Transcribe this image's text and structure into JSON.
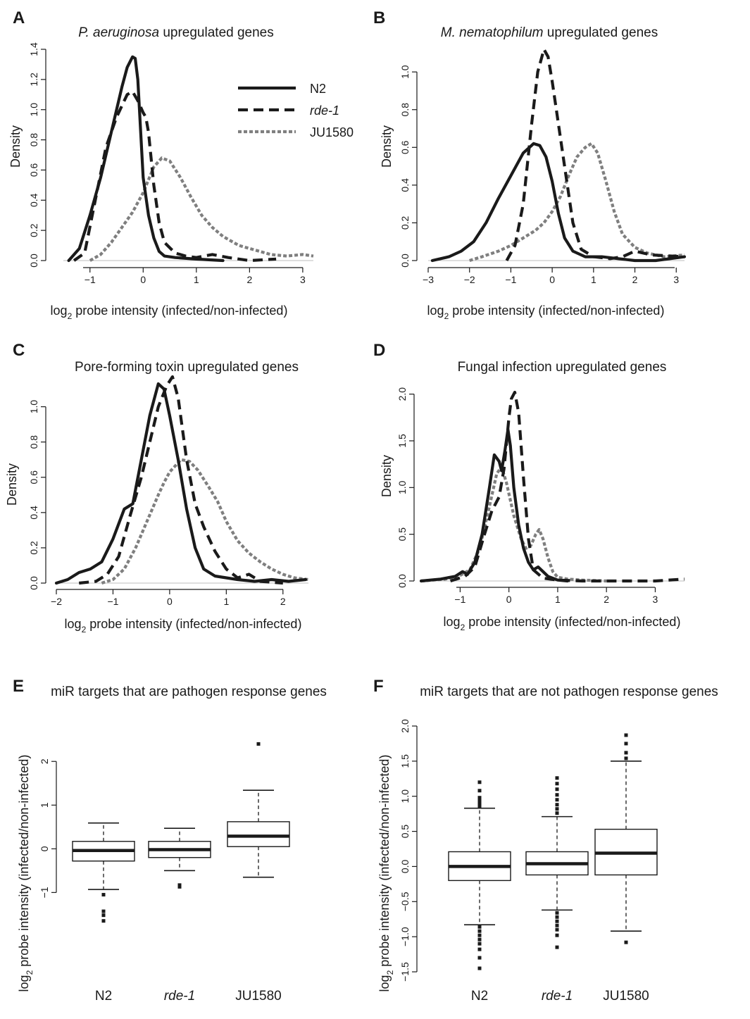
{
  "chart_data": [
    {
      "panel_label": "A",
      "type": "line",
      "title_italic": "P. aeruginosa",
      "title_rest": " upregulated genes",
      "xlabel": "log2 probe intensity (infected/non-infected)",
      "xlabel_main": "log",
      "xlabel_sub": "2",
      "xlabel_rest": " probe intensity (infected/non-infected)",
      "ylabel": "Density",
      "xlim": [
        -1.5,
        3.2
      ],
      "ylim": [
        0,
        1.4
      ],
      "xticks": [
        -1,
        0,
        1,
        2,
        3
      ],
      "yticks": [
        0.0,
        0.2,
        0.4,
        0.6,
        0.8,
        1.0,
        1.2,
        1.4
      ],
      "yticklabels": [
        "0.0",
        "0.2",
        "0.4",
        "0.6",
        "0.8",
        "1.0",
        "1.2",
        "1.4"
      ],
      "legend": {
        "placement": "top-right",
        "entries": [
          "N2",
          "rde-1",
          "JU1580"
        ]
      },
      "series": [
        {
          "name": "N2",
          "style": "solid",
          "color": "#1a1a1a",
          "x": [
            -1.4,
            -1.2,
            -1.0,
            -0.8,
            -0.6,
            -0.4,
            -0.3,
            -0.2,
            -0.15,
            -0.1,
            0.0,
            0.1,
            0.2,
            0.3,
            0.4,
            0.6,
            1.0,
            1.5
          ],
          "y": [
            0.0,
            0.08,
            0.3,
            0.55,
            0.85,
            1.15,
            1.28,
            1.35,
            1.34,
            1.2,
            0.55,
            0.3,
            0.15,
            0.06,
            0.03,
            0.02,
            0.01,
            0.0
          ]
        },
        {
          "name": "rde-1",
          "style": "dashed",
          "color": "#1a1a1a",
          "x": [
            -1.3,
            -1.1,
            -0.9,
            -0.7,
            -0.5,
            -0.3,
            -0.2,
            -0.1,
            0.0,
            0.05,
            0.1,
            0.2,
            0.3,
            0.4,
            0.6,
            0.8,
            1.0,
            1.3,
            1.6,
            2.0,
            2.5
          ],
          "y": [
            0.0,
            0.05,
            0.4,
            0.75,
            0.95,
            1.1,
            1.12,
            1.06,
            0.98,
            0.95,
            0.85,
            0.5,
            0.25,
            0.12,
            0.05,
            0.03,
            0.02,
            0.04,
            0.02,
            0.0,
            0.01
          ]
        },
        {
          "name": "JU1580",
          "style": "dotted",
          "color": "#7f7f7f",
          "x": [
            -1.0,
            -0.8,
            -0.6,
            -0.4,
            -0.2,
            0.0,
            0.2,
            0.35,
            0.5,
            0.7,
            0.9,
            1.1,
            1.3,
            1.5,
            1.8,
            2.1,
            2.4,
            2.7,
            3.0,
            3.2
          ],
          "y": [
            0.0,
            0.04,
            0.12,
            0.22,
            0.32,
            0.45,
            0.62,
            0.68,
            0.66,
            0.55,
            0.42,
            0.3,
            0.22,
            0.16,
            0.1,
            0.07,
            0.04,
            0.03,
            0.04,
            0.03
          ]
        }
      ]
    },
    {
      "panel_label": "B",
      "type": "line",
      "title_italic": "M. nematophilum",
      "title_rest": " upregulated genes",
      "xlabel": "log2 probe intensity (infected/non-infected)",
      "xlabel_main": "log",
      "xlabel_sub": "2",
      "xlabel_rest": " probe intensity (infected/non-infected)",
      "ylabel": "Density",
      "xlim": [
        -3.0,
        3.2
      ],
      "ylim": [
        0,
        1.12
      ],
      "xticks": [
        -3,
        -2,
        -1,
        0,
        1,
        2,
        3
      ],
      "yticks": [
        0.0,
        0.2,
        0.4,
        0.6,
        0.8,
        1.0
      ],
      "yticklabels": [
        "0.0",
        "0.2",
        "0.4",
        "0.6",
        "0.8",
        "1.0"
      ],
      "series": [
        {
          "name": "N2",
          "style": "solid",
          "color": "#1a1a1a",
          "x": [
            -2.9,
            -2.5,
            -2.2,
            -1.9,
            -1.6,
            -1.3,
            -1.0,
            -0.7,
            -0.45,
            -0.3,
            -0.15,
            0.0,
            0.15,
            0.3,
            0.5,
            0.8,
            1.2,
            1.6,
            2.0,
            2.5,
            3.2
          ],
          "y": [
            0.0,
            0.02,
            0.05,
            0.1,
            0.2,
            0.33,
            0.45,
            0.57,
            0.62,
            0.61,
            0.55,
            0.42,
            0.25,
            0.12,
            0.05,
            0.02,
            0.02,
            0.01,
            0.0,
            0.0,
            0.02
          ]
        },
        {
          "name": "rde-1",
          "style": "dashed",
          "color": "#1a1a1a",
          "x": [
            -1.1,
            -0.9,
            -0.7,
            -0.5,
            -0.35,
            -0.2,
            -0.1,
            0.0,
            0.1,
            0.3,
            0.5,
            0.7,
            1.0,
            1.4,
            1.7,
            2.0,
            2.4,
            3.2
          ],
          "y": [
            0.0,
            0.08,
            0.3,
            0.72,
            1.0,
            1.12,
            1.08,
            0.95,
            0.8,
            0.5,
            0.2,
            0.06,
            0.02,
            0.01,
            0.02,
            0.05,
            0.03,
            0.02
          ]
        },
        {
          "name": "JU1580",
          "style": "dotted",
          "color": "#7f7f7f",
          "x": [
            -2.0,
            -1.7,
            -1.3,
            -1.0,
            -0.7,
            -0.4,
            -0.2,
            0.0,
            0.2,
            0.4,
            0.6,
            0.8,
            0.95,
            1.1,
            1.3,
            1.5,
            1.7,
            2.0,
            2.3,
            2.7,
            3.2
          ],
          "y": [
            0.0,
            0.02,
            0.05,
            0.08,
            0.12,
            0.16,
            0.2,
            0.26,
            0.34,
            0.45,
            0.55,
            0.6,
            0.62,
            0.57,
            0.42,
            0.26,
            0.14,
            0.07,
            0.04,
            0.02,
            0.03
          ]
        }
      ]
    },
    {
      "panel_label": "C",
      "type": "line",
      "title": "Pore-forming toxin upregulated genes",
      "xlabel": "log2 probe intensity (infected/non-infected)",
      "xlabel_main": "log",
      "xlabel_sub": "2",
      "xlabel_rest": " probe intensity (infected/non-infected)",
      "ylabel": "Density",
      "xlim": [
        -2.0,
        2.45
      ],
      "ylim": [
        0,
        1.17
      ],
      "xticks": [
        -2,
        -1,
        0,
        1,
        2
      ],
      "yticks": [
        0.0,
        0.2,
        0.4,
        0.6,
        0.8,
        1.0
      ],
      "yticklabels": [
        "0.0",
        "0.2",
        "0.4",
        "0.6",
        "0.8",
        "1.0"
      ],
      "series": [
        {
          "name": "N2",
          "style": "solid",
          "color": "#1a1a1a",
          "x": [
            -2.0,
            -1.8,
            -1.6,
            -1.4,
            -1.2,
            -1.0,
            -0.8,
            -0.65,
            -0.5,
            -0.35,
            -0.2,
            -0.1,
            0.0,
            0.15,
            0.3,
            0.45,
            0.6,
            0.8,
            1.0,
            1.2,
            1.5,
            1.8,
            2.1,
            2.4
          ],
          "y": [
            0.0,
            0.02,
            0.06,
            0.08,
            0.12,
            0.25,
            0.42,
            0.45,
            0.7,
            0.95,
            1.13,
            1.1,
            0.95,
            0.7,
            0.42,
            0.2,
            0.08,
            0.04,
            0.03,
            0.02,
            0.01,
            0.02,
            0.01,
            0.02
          ]
        },
        {
          "name": "rde-1",
          "style": "dashed",
          "color": "#1a1a1a",
          "x": [
            -1.6,
            -1.3,
            -1.1,
            -0.9,
            -0.7,
            -0.5,
            -0.35,
            -0.2,
            -0.05,
            0.05,
            0.15,
            0.3,
            0.45,
            0.6,
            0.8,
            1.0,
            1.2,
            1.4,
            1.6,
            2.0
          ],
          "y": [
            0.0,
            0.01,
            0.05,
            0.15,
            0.38,
            0.6,
            0.8,
            1.0,
            1.12,
            1.17,
            1.05,
            0.7,
            0.45,
            0.32,
            0.18,
            0.08,
            0.03,
            0.05,
            0.01,
            0.0
          ]
        },
        {
          "name": "JU1580",
          "style": "dotted",
          "color": "#7f7f7f",
          "x": [
            -1.2,
            -1.0,
            -0.8,
            -0.6,
            -0.4,
            -0.2,
            -0.1,
            0.0,
            0.2,
            0.35,
            0.5,
            0.7,
            0.85,
            1.0,
            1.2,
            1.4,
            1.6,
            1.8,
            2.0,
            2.2,
            2.45
          ],
          "y": [
            0.0,
            0.02,
            0.08,
            0.2,
            0.35,
            0.5,
            0.57,
            0.63,
            0.7,
            0.69,
            0.64,
            0.54,
            0.46,
            0.35,
            0.24,
            0.17,
            0.12,
            0.08,
            0.05,
            0.03,
            0.02
          ]
        }
      ]
    },
    {
      "panel_label": "D",
      "type": "line",
      "title": "Fungal infection upregulated genes",
      "xlabel": "log2 probe intensity (infected/non-infected)",
      "xlabel_main": "log",
      "xlabel_sub": "2",
      "xlabel_rest": " probe intensity (infected/non-infected)",
      "ylabel": "Density",
      "xlim": [
        -1.8,
        3.6
      ],
      "ylim": [
        0,
        2.02
      ],
      "xticks": [
        -1,
        0,
        1,
        2,
        3
      ],
      "yticks": [
        0.0,
        0.5,
        1.0,
        1.5,
        2.0
      ],
      "yticklabels": [
        "0.0",
        "0.5",
        "1.0",
        "1.5",
        "2.0"
      ],
      "series": [
        {
          "name": "N2",
          "style": "solid",
          "color": "#1a1a1a",
          "x": [
            -1.8,
            -1.4,
            -1.1,
            -0.95,
            -0.85,
            -0.7,
            -0.55,
            -0.4,
            -0.3,
            -0.2,
            -0.15,
            -0.08,
            -0.02,
            0.03,
            0.1,
            0.2,
            0.3,
            0.4,
            0.5,
            0.6,
            0.7,
            0.8,
            1.0,
            1.2
          ],
          "y": [
            0.0,
            0.02,
            0.05,
            0.1,
            0.07,
            0.2,
            0.5,
            1.0,
            1.35,
            1.28,
            1.18,
            1.4,
            1.62,
            1.45,
            1.0,
            0.6,
            0.35,
            0.2,
            0.12,
            0.15,
            0.1,
            0.05,
            0.01,
            0.0
          ]
        },
        {
          "name": "rde-1",
          "style": "dashed",
          "color": "#1a1a1a",
          "x": [
            -1.2,
            -0.9,
            -0.7,
            -0.5,
            -0.35,
            -0.2,
            -0.1,
            0.0,
            0.05,
            0.12,
            0.2,
            0.3,
            0.4,
            0.5,
            0.7,
            1.0,
            1.5,
            2.0,
            2.5,
            3.0,
            3.6
          ],
          "y": [
            0.0,
            0.05,
            0.15,
            0.5,
            0.75,
            0.9,
            1.2,
            1.75,
            1.95,
            2.02,
            1.8,
            1.1,
            0.45,
            0.12,
            0.03,
            0.01,
            0.0,
            0.0,
            0.0,
            0.0,
            0.02
          ]
        },
        {
          "name": "JU1580",
          "style": "dotted",
          "color": "#7f7f7f",
          "x": [
            -1.8,
            -1.3,
            -1.0,
            -0.8,
            -0.6,
            -0.4,
            -0.25,
            -0.15,
            -0.05,
            0.1,
            0.25,
            0.35,
            0.45,
            0.55,
            0.62,
            0.7,
            0.8,
            0.9,
            1.0,
            1.2,
            1.5,
            2.0
          ],
          "y": [
            0.0,
            0.02,
            0.06,
            0.12,
            0.35,
            0.8,
            1.15,
            1.22,
            1.05,
            0.7,
            0.45,
            0.35,
            0.38,
            0.5,
            0.55,
            0.45,
            0.25,
            0.1,
            0.04,
            0.02,
            0.01,
            0.0
          ]
        }
      ]
    },
    {
      "panel_label": "E",
      "type": "box",
      "title": "miR targets that are pathogen response genes",
      "ylabel": "log2 probe intensity (infected/non-infected)",
      "ylabel_main": "log",
      "ylabel_sub": "2",
      "ylabel_rest": " probe intensity (infected/non-infected)",
      "ylim": [
        -1.8,
        2.6
      ],
      "yticks": [
        -1,
        0,
        1,
        2
      ],
      "yticklabels": [
        "−1",
        "0",
        "1",
        "2"
      ],
      "categories": [
        "N2",
        "rde-1",
        "JU1580"
      ],
      "category_italic": [
        false,
        true,
        false
      ],
      "boxes": [
        {
          "whisker_low": -0.93,
          "q1": -0.28,
          "median": -0.04,
          "q3": 0.17,
          "whisker_high": 0.59,
          "outliers": [
            -1.05,
            -1.43,
            -1.52,
            -1.65
          ]
        },
        {
          "whisker_low": -0.5,
          "q1": -0.2,
          "median": -0.02,
          "q3": 0.17,
          "whisker_high": 0.47,
          "outliers": [
            -0.83,
            -0.87
          ]
        },
        {
          "whisker_low": -0.65,
          "q1": 0.05,
          "median": 0.29,
          "q3": 0.62,
          "whisker_high": 1.34,
          "outliers": [
            2.4
          ]
        }
      ]
    },
    {
      "panel_label": "F",
      "type": "box",
      "title": "miR targets that are not pathogen response genes",
      "ylabel": "log2 probe intensity (infected/non-infected)",
      "ylabel_main": "log",
      "ylabel_sub": "2",
      "ylabel_rest": " probe intensity (infected/non-infected)",
      "ylim": [
        -1.55,
        2.05
      ],
      "yticks": [
        -1.5,
        -1.0,
        -0.5,
        0.0,
        0.5,
        1.0,
        1.5,
        2.0
      ],
      "yticklabels": [
        "−1.5",
        "−1.0",
        "−0.5",
        "0.0",
        "0.5",
        "1.0",
        "1.5",
        "2.0"
      ],
      "categories": [
        "N2",
        "rde-1",
        "JU1580"
      ],
      "category_italic": [
        false,
        true,
        false
      ],
      "boxes": [
        {
          "whisker_low": -0.83,
          "q1": -0.2,
          "median": 0.0,
          "q3": 0.21,
          "whisker_high": 0.83,
          "outliers": [
            0.86,
            0.9,
            0.94,
            0.98,
            1.08,
            1.2,
            -0.86,
            -0.92,
            -0.98,
            -1.04,
            -1.1,
            -1.18,
            -1.3,
            -1.45
          ]
        },
        {
          "whisker_low": -0.62,
          "q1": -0.12,
          "median": 0.04,
          "q3": 0.21,
          "whisker_high": 0.71,
          "outliers": [
            0.76,
            0.82,
            0.88,
            0.95,
            1.02,
            1.1,
            1.18,
            1.26,
            -0.66,
            -0.72,
            -0.78,
            -0.84,
            -0.9,
            -0.98,
            -1.15
          ]
        },
        {
          "whisker_low": -0.92,
          "q1": -0.12,
          "median": 0.19,
          "q3": 0.53,
          "whisker_high": 1.5,
          "outliers": [
            1.54,
            1.62,
            1.75,
            1.87,
            -1.08
          ]
        }
      ]
    }
  ],
  "figure": {
    "axis_color": "#1a1a1a",
    "grey_color": "#7f7f7f"
  }
}
